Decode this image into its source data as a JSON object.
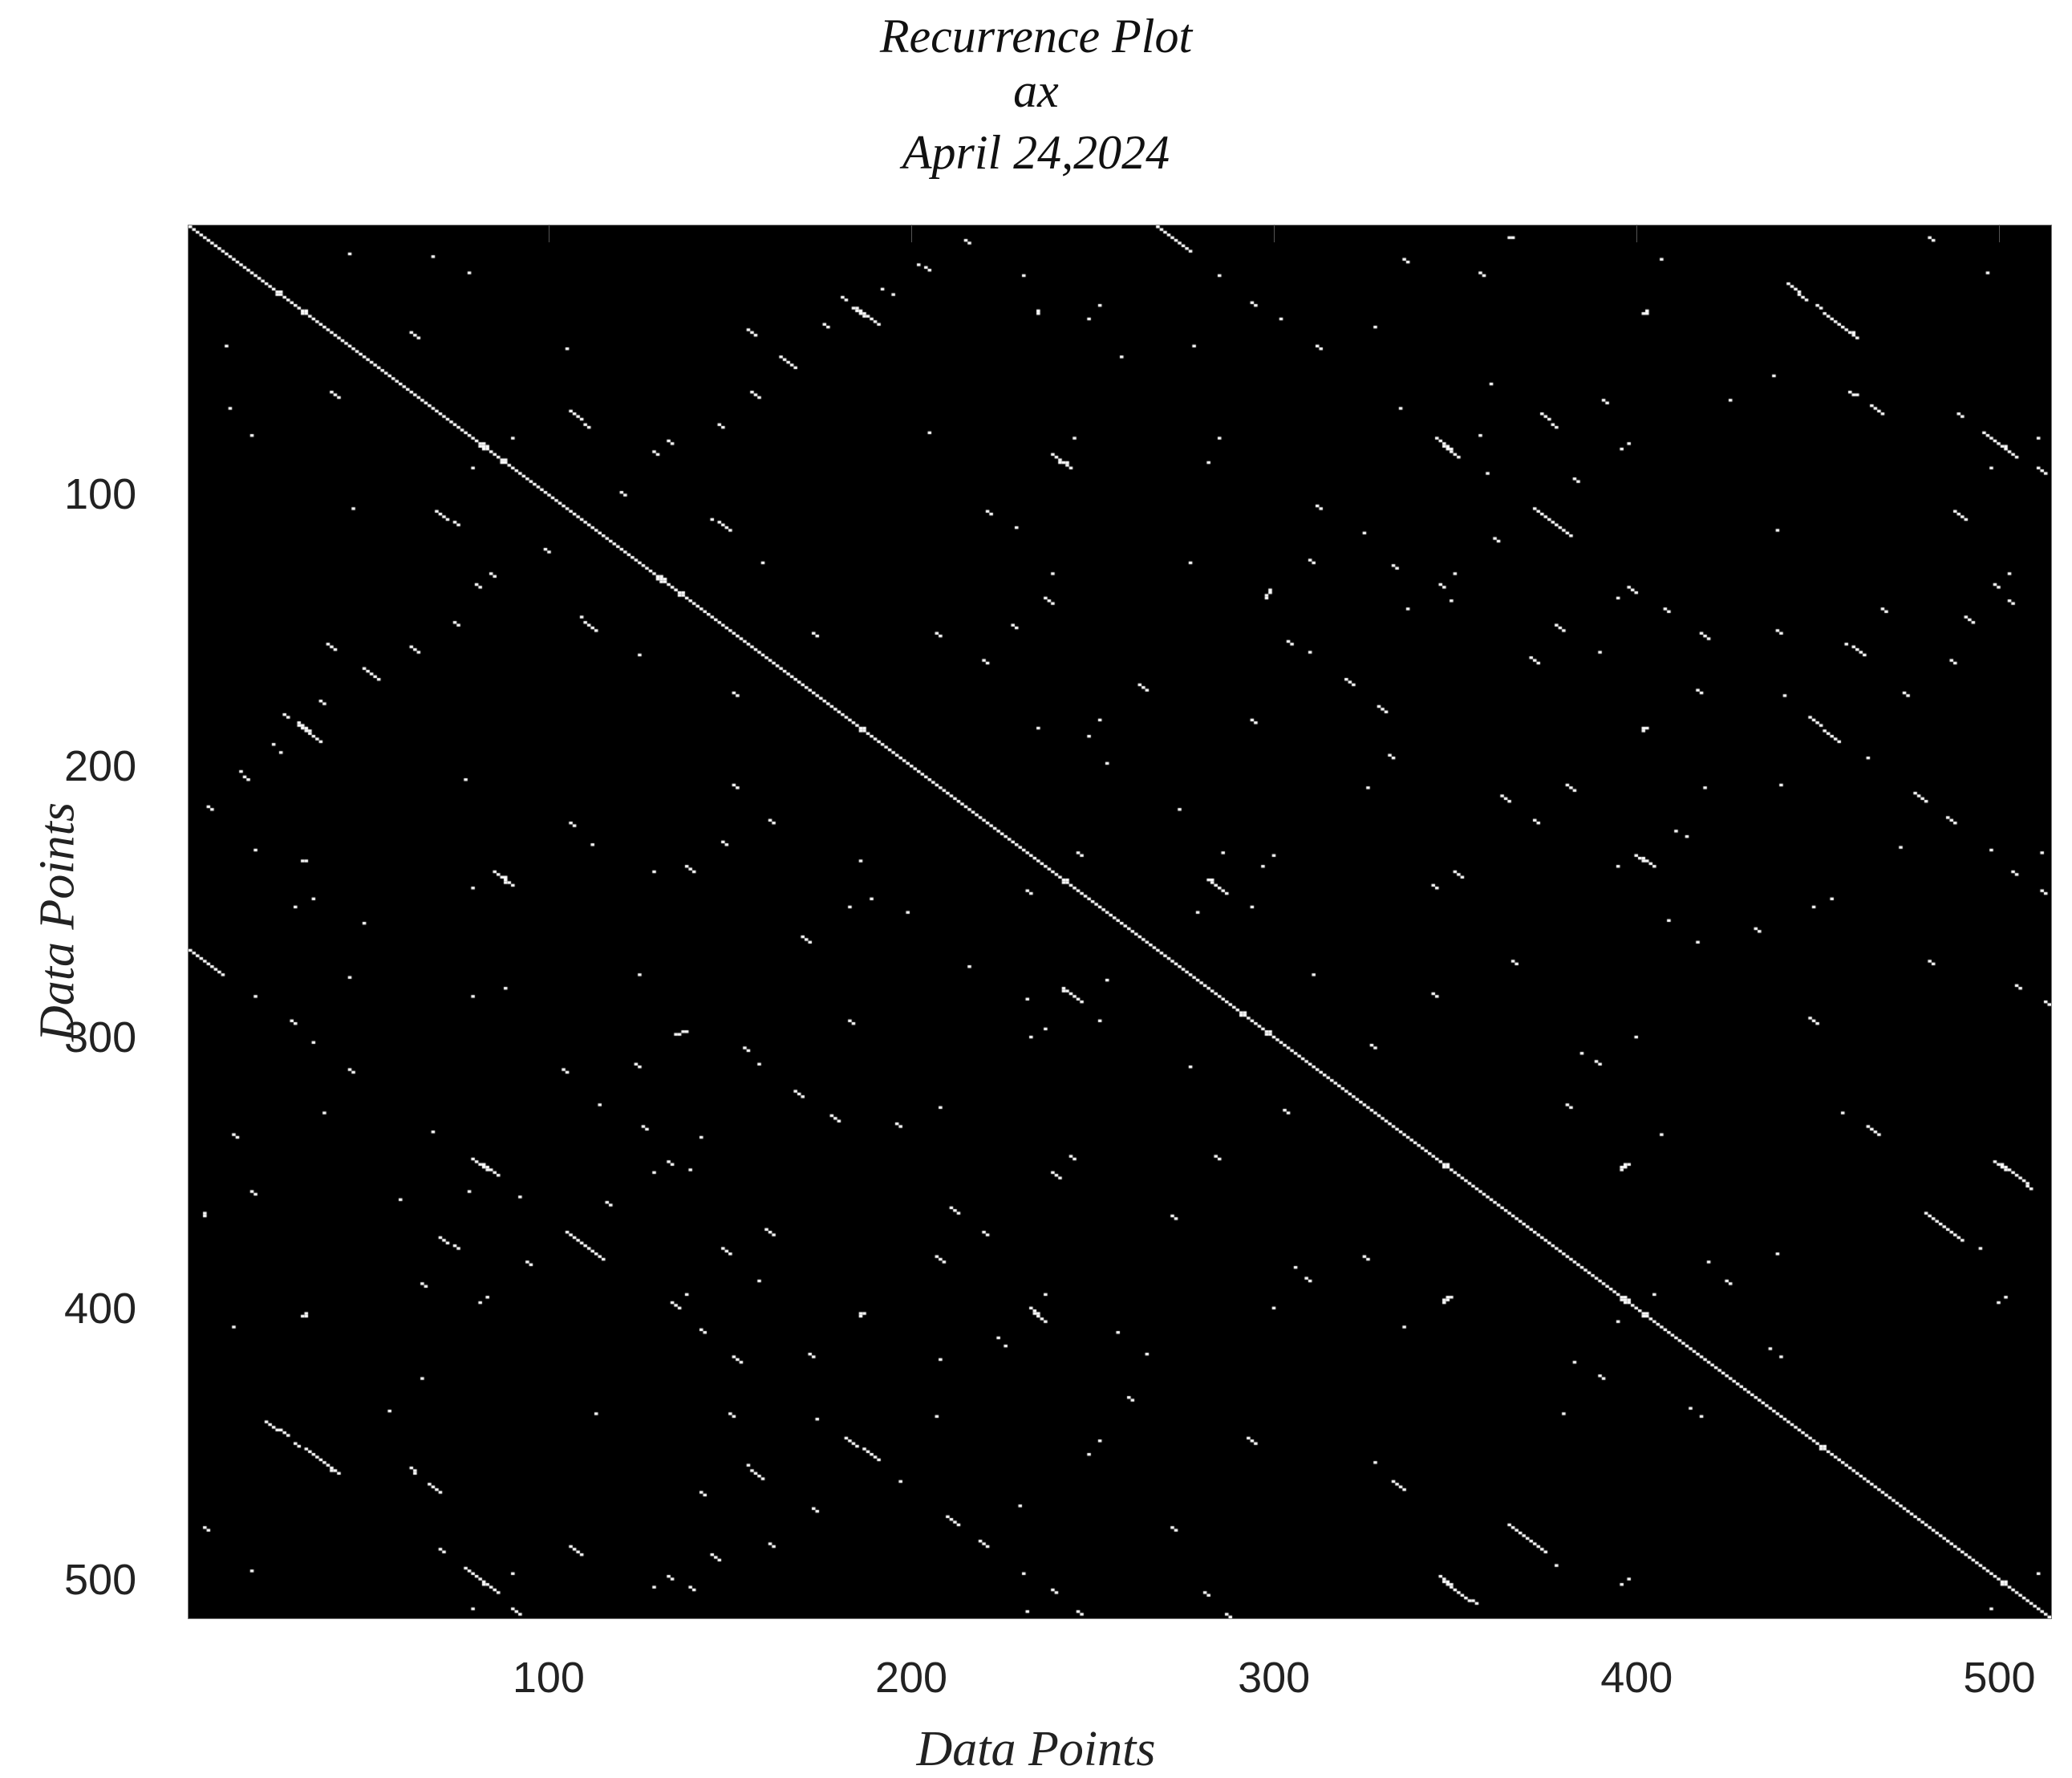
{
  "chart_data": {
    "type": "heatmap",
    "title": [
      "Recurrence Plot",
      "ax",
      "April 24,2024"
    ],
    "xlabel": "Data Points",
    "ylabel": "Data Points",
    "xlim": [
      0.5,
      514.5
    ],
    "ylim": [
      0.5,
      514.5
    ],
    "y_axis_direction": "top-to-bottom",
    "xticks": [
      100,
      200,
      300,
      400,
      500
    ],
    "yticks": [
      100,
      200,
      300,
      400,
      500
    ],
    "colormap": {
      "recurrent": "#ffffff",
      "non_recurrent": "#000000"
    },
    "grid": false,
    "legend": "none",
    "main_diagonal": "recurrent"
  }
}
